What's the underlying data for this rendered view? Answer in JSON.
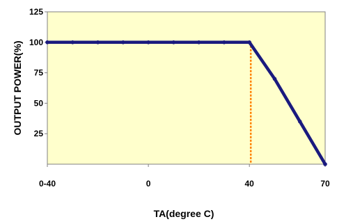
{
  "chart_data": {
    "type": "line",
    "x_tick_labels": [
      "0-40",
      "0",
      "40",
      "70"
    ],
    "y_ticks": [
      25,
      50,
      75,
      100,
      125
    ],
    "ylim": [
      0,
      125
    ],
    "xlabel": "TA(degree C)",
    "ylabel": "OUTPUT POWER(%)",
    "grid": false,
    "legend": "none",
    "series": [
      {
        "points": [
          {
            "x": -40,
            "y": 100
          },
          {
            "x": -30,
            "y": 100
          },
          {
            "x": -20,
            "y": 100
          },
          {
            "x": -10,
            "y": 100
          },
          {
            "x": 0,
            "y": 100
          },
          {
            "x": 10,
            "y": 100
          },
          {
            "x": 20,
            "y": 100
          },
          {
            "x": 30,
            "y": 100
          },
          {
            "x": 40,
            "y": 100
          },
          {
            "x": 50,
            "y": 70
          },
          {
            "x": 60,
            "y": 35
          },
          {
            "x": 70,
            "y": 0
          }
        ]
      }
    ],
    "marker_line": {
      "x": 40,
      "y_from": 0,
      "y_to": 100
    },
    "colors": {
      "plot_background": "#FFFFCC",
      "series_line": "#1A1A7E",
      "marker_line": "#FF8000",
      "axis": "#808080"
    }
  }
}
